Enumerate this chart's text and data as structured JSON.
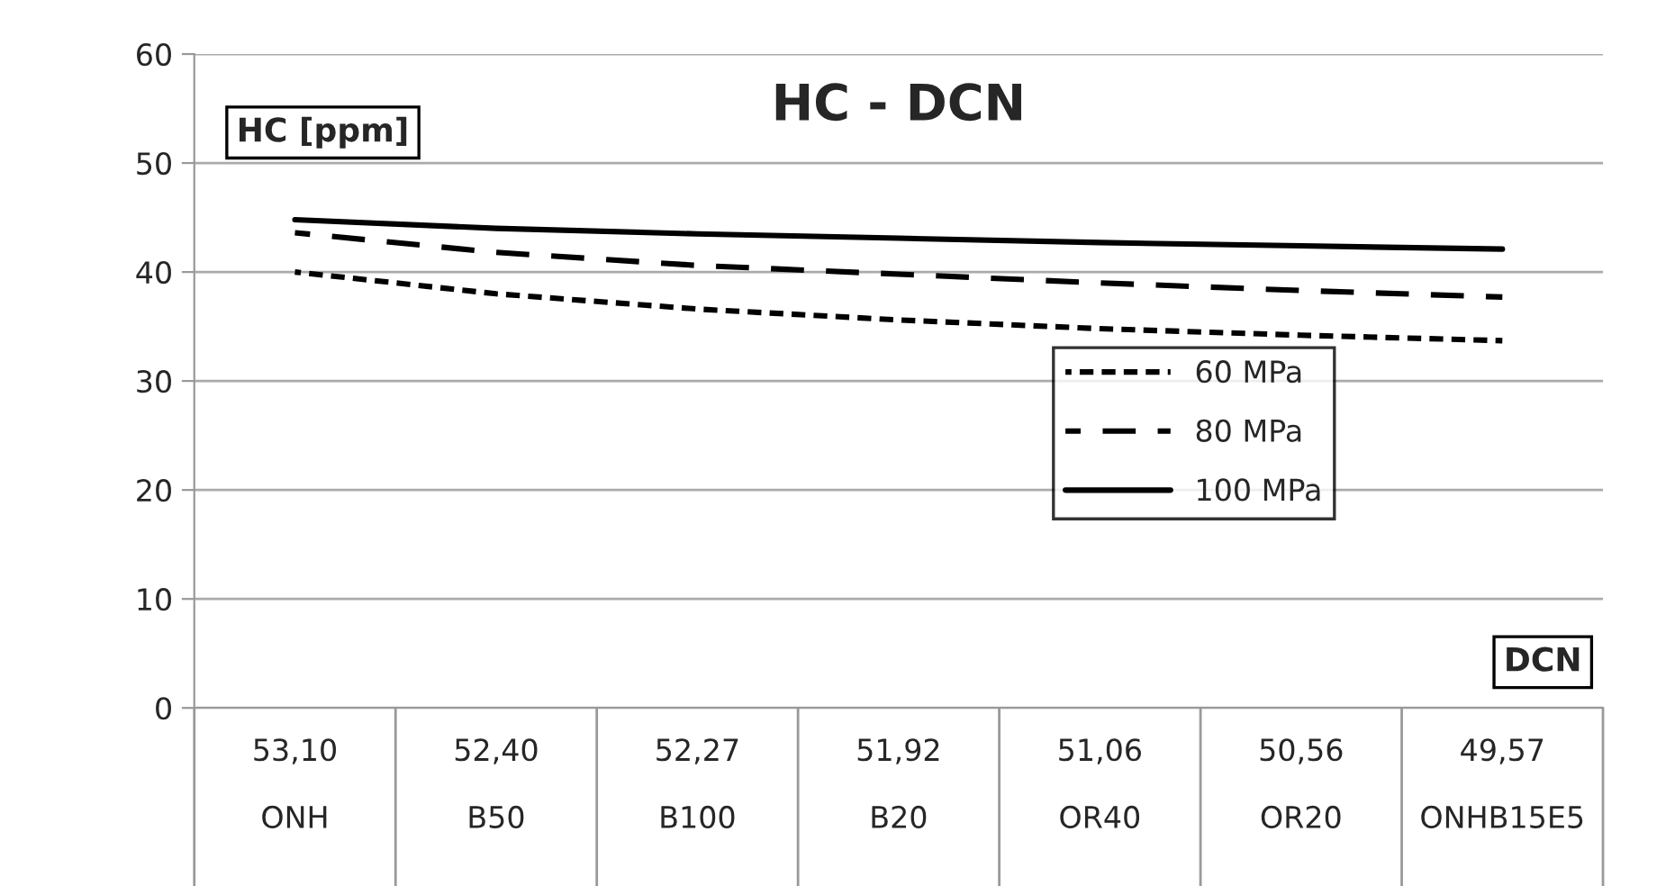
{
  "chart_data": {
    "type": "line",
    "title": "HC - DCN",
    "xlabel": "DCN",
    "ylabel": "HC [ppm]",
    "categories": [
      "53,10\n\nONH",
      "52,40\n\nB50",
      "52,27\n\nB100",
      "51,92\n\nB20",
      "51,06\n\nOR40",
      "50,56\n\nOR20",
      "49,57\n\nONHB15E5"
    ],
    "series": [
      {
        "name": "60 MPa",
        "color": "#000000",
        "line_style": "dotted",
        "values": [
          40.0,
          38.0,
          36.6,
          35.6,
          34.8,
          34.2,
          33.7
        ]
      },
      {
        "name": "80 MPa",
        "color": "#000000",
        "line_style": "dashed",
        "values": [
          43.6,
          41.8,
          40.6,
          39.8,
          39.0,
          38.3,
          37.7
        ]
      },
      {
        "name": "100 MPa",
        "color": "#000000",
        "line_style": "solid",
        "values": [
          44.8,
          44.0,
          43.5,
          43.1,
          42.7,
          42.4,
          42.1
        ]
      }
    ],
    "ylim": [
      0,
      60
    ],
    "yticks": [
      0,
      10,
      20,
      30,
      40,
      50,
      60
    ],
    "grid": "y",
    "legend": "right",
    "marker": "none"
  }
}
